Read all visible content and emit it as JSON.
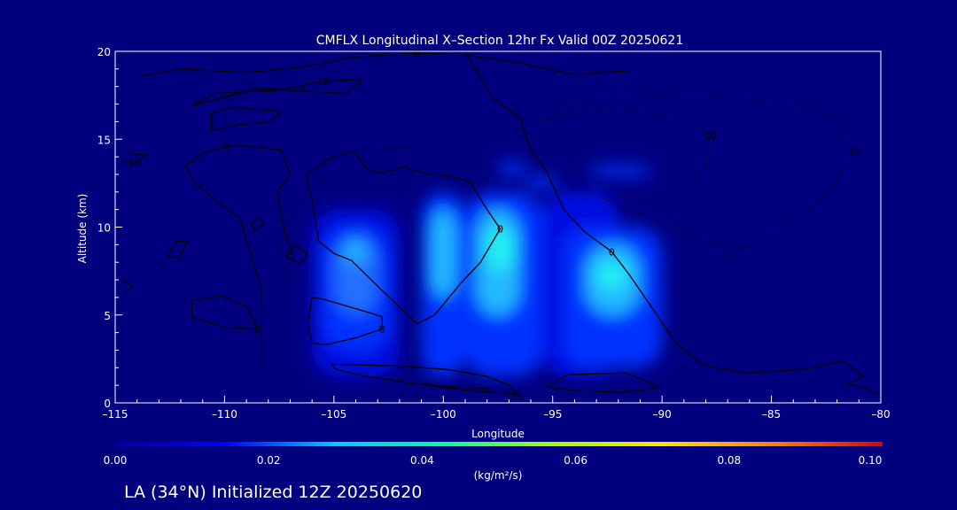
{
  "chart_data": {
    "type": "heatmap",
    "title": "CMFLX Longitudinal X–Section 12hr  Fx Valid 00Z 20250621",
    "xlabel": "Longitude",
    "ylabel": "Altitude (km)",
    "xlim": [
      -115,
      -80
    ],
    "ylim": [
      0,
      20
    ],
    "x_ticks": [
      -115,
      -110,
      -105,
      -100,
      -95,
      -90,
      -85,
      -80
    ],
    "x_tick_labels": [
      "–115",
      "–110",
      "–105",
      "–100",
      "–95",
      "–90",
      "–85",
      "–80"
    ],
    "y_ticks": [
      0,
      5,
      10,
      15,
      20
    ],
    "y_tick_labels": [
      "0",
      "5",
      "10",
      "15",
      "20"
    ],
    "colorbar": {
      "range": [
        0.0,
        0.1
      ],
      "ticks": [
        "0.00",
        "0.02",
        "0.04",
        "0.06",
        "0.08",
        "0.10"
      ],
      "units": "(kg/m²/s)",
      "colors": [
        "#0000a0",
        "#0000ff",
        "#00c8ff",
        "#00ffa0",
        "#a0ff00",
        "#ffe000",
        "#ff8000",
        "#e00000"
      ]
    },
    "fill_color_bands": [
      "#0000c4",
      "#0010e0",
      "#0030ff",
      "#2070ff",
      "#20b8ff",
      "#20f0f0"
    ],
    "cells": [
      {
        "x": [
          -106,
          -102
        ],
        "y": [
          1.5,
          11
        ],
        "value": 0.012
      },
      {
        "x": [
          -105.5,
          -102.5
        ],
        "y": [
          3,
          10
        ],
        "value": 0.02
      },
      {
        "x": [
          -105,
          -103
        ],
        "y": [
          5,
          9.5
        ],
        "value": 0.028
      },
      {
        "x": [
          -104.5,
          -103.5
        ],
        "y": [
          8,
          9.2
        ],
        "value": 0.036
      },
      {
        "x": [
          -101,
          -99
        ],
        "y": [
          1.5,
          12
        ],
        "value": 0.015
      },
      {
        "x": [
          -100.6,
          -99.4
        ],
        "y": [
          6,
          11
        ],
        "value": 0.03
      },
      {
        "x": [
          -99,
          -95.5
        ],
        "y": [
          1.5,
          12
        ],
        "value": 0.018
      },
      {
        "x": [
          -98.5,
          -96.5
        ],
        "y": [
          5,
          11
        ],
        "value": 0.03
      },
      {
        "x": [
          -98,
          -96.8
        ],
        "y": [
          7.5,
          10
        ],
        "value": 0.042
      },
      {
        "x": [
          -95.5,
          -92
        ],
        "y": [
          1.5,
          12
        ],
        "value": 0.012
      },
      {
        "x": [
          -94.5,
          -90
        ],
        "y": [
          2,
          10
        ],
        "value": 0.02
      },
      {
        "x": [
          -93.5,
          -91
        ],
        "y": [
          5,
          9
        ],
        "value": 0.03
      },
      {
        "x": [
          -93,
          -91.6
        ],
        "y": [
          6.5,
          8
        ],
        "value": 0.038
      },
      {
        "x": [
          -97.5,
          -96.2
        ],
        "y": [
          13,
          13.7
        ],
        "value": 0.02
      },
      {
        "x": [
          -96.2,
          -94.8
        ],
        "y": [
          12.2,
          12.9
        ],
        "value": 0.018
      },
      {
        "x": [
          -93.3,
          -90.5
        ],
        "y": [
          12.9,
          13.5
        ],
        "value": 0.016
      }
    ],
    "contours": [
      {
        "value": 0,
        "style": "solid",
        "label": "0",
        "points": [
          [
            -113.8,
            18.6
          ],
          [
            -112,
            19
          ],
          [
            -109,
            18.8
          ],
          [
            -106.5,
            19.1
          ],
          [
            -104,
            19.7
          ],
          [
            -101.2,
            19.9
          ],
          [
            -99,
            19.8
          ],
          [
            -96.8,
            19.4
          ],
          [
            -94,
            18.7
          ],
          [
            -91.5,
            18.9
          ]
        ]
      },
      {
        "value": 0,
        "style": "solid",
        "label": "0",
        "points": [
          [
            -99,
            20
          ],
          [
            -97.8,
            17.4
          ],
          [
            -96.5,
            16.2
          ],
          [
            -96,
            14.4
          ],
          [
            -95.3,
            13.2
          ],
          [
            -94.9,
            12.1
          ],
          [
            -94.5,
            11
          ],
          [
            -93.5,
            9.7
          ],
          [
            -92.3,
            8.6
          ],
          [
            -91.5,
            7.3
          ],
          [
            -90.4,
            5.3
          ],
          [
            -89.3,
            3.3
          ],
          [
            -88,
            2.1
          ],
          [
            -86,
            1.7
          ],
          [
            -83.5,
            1.9
          ],
          [
            -81.7,
            2.4
          ],
          [
            -80.8,
            1.5
          ]
        ]
      },
      {
        "value": 0,
        "style": "solid",
        "label": "",
        "points": [
          [
            -80.8,
            1.5
          ],
          [
            -81.5,
            1.1
          ],
          [
            -80.6,
            0.8
          ],
          [
            -80.2,
            0.5
          ]
        ]
      },
      {
        "value": 0,
        "style": "solid",
        "label": "0",
        "points": [
          [
            -108.3,
            2.1
          ],
          [
            -108.3,
            6.4
          ],
          [
            -109.3,
            10.5
          ],
          [
            -110.4,
            11.5
          ],
          [
            -111.4,
            12.6
          ],
          [
            -111.8,
            13.5
          ],
          [
            -111,
            14.2
          ],
          [
            -109.9,
            14.6
          ],
          [
            -108.8,
            14.6
          ],
          [
            -107.4,
            14.4
          ],
          [
            -107,
            13
          ],
          [
            -107.6,
            12
          ],
          [
            -107.3,
            10
          ],
          [
            -106.8,
            8
          ]
        ]
      },
      {
        "value": 0,
        "style": "solid",
        "label": "0",
        "points": [
          [
            -106.3,
            13
          ],
          [
            -105.1,
            14
          ],
          [
            -104.1,
            14.3
          ],
          [
            -103.4,
            13.2
          ],
          [
            -102.8,
            13.1
          ],
          [
            -101.8,
            13.4
          ],
          [
            -100.6,
            13
          ],
          [
            -99.7,
            12.9
          ],
          [
            -98.8,
            12.6
          ],
          [
            -98,
            11
          ],
          [
            -97.4,
            9.9
          ],
          [
            -98.3,
            8
          ],
          [
            -99.2,
            6.8
          ],
          [
            -100.4,
            5
          ],
          [
            -101.2,
            4.5
          ],
          [
            -102.8,
            6.4
          ],
          [
            -104.2,
            8.1
          ],
          [
            -105,
            8.5
          ],
          [
            -105.7,
            9.2
          ],
          [
            -106,
            11.5
          ],
          [
            -106.3,
            13
          ]
        ]
      },
      {
        "value": 0,
        "style": "solid",
        "label": "0",
        "points": [
          [
            -106,
            6
          ],
          [
            -105.5,
            5.9
          ],
          [
            -104.4,
            5.5
          ],
          [
            -103.3,
            5.1
          ],
          [
            -102.8,
            4.9
          ],
          [
            -102.8,
            4.2
          ],
          [
            -104,
            3.7
          ],
          [
            -105.4,
            3.3
          ],
          [
            -106,
            3.4
          ],
          [
            -106.2,
            4.5
          ],
          [
            -106,
            6
          ]
        ]
      },
      {
        "value": 0,
        "style": "solid",
        "label": "",
        "points": [
          [
            -110.6,
            15.5
          ],
          [
            -110.6,
            16.5
          ],
          [
            -109.6,
            16.8
          ],
          [
            -107.4,
            16.6
          ],
          [
            -107.9,
            16
          ],
          [
            -109.5,
            15.8
          ],
          [
            -110.6,
            15.5
          ]
        ]
      },
      {
        "value": 0,
        "style": "solid",
        "label": "",
        "points": [
          [
            -108.5,
            10.5
          ],
          [
            -108.2,
            10.2
          ],
          [
            -108.6,
            9.8
          ],
          [
            -108.8,
            10.1
          ],
          [
            -108.5,
            10.5
          ]
        ]
      },
      {
        "value": 0,
        "style": "solid",
        "label": "",
        "points": [
          [
            -112.2,
            9.2
          ],
          [
            -111.7,
            9.2
          ],
          [
            -112.1,
            8.2
          ],
          [
            -112.6,
            8.4
          ],
          [
            -112.2,
            9.2
          ]
        ]
      },
      {
        "value": 0,
        "style": "solid",
        "label": "",
        "points": [
          [
            -106.8,
            9
          ],
          [
            -106.2,
            8.5
          ],
          [
            -106.5,
            7.9
          ],
          [
            -107.2,
            8.3
          ],
          [
            -106.8,
            9
          ]
        ]
      },
      {
        "value": 0,
        "style": "solid",
        "label": "0",
        "points": [
          [
            -111.5,
            5.8
          ],
          [
            -110.2,
            6.1
          ],
          [
            -109,
            5.5
          ],
          [
            -108.5,
            4.2
          ],
          [
            -110,
            4.3
          ],
          [
            -111.5,
            4.9
          ],
          [
            -111.5,
            5.8
          ]
        ]
      },
      {
        "value": 0,
        "style": "solid",
        "label": "",
        "points": [
          [
            -114.6,
            7
          ],
          [
            -114.2,
            6.6
          ],
          [
            -114.6,
            6.2
          ]
        ]
      },
      {
        "value": 10,
        "style": "solid",
        "label": "10",
        "points": [
          [
            -111.5,
            16.9
          ],
          [
            -108.5,
            17.9
          ],
          [
            -104.4,
            17.6
          ],
          [
            -103.7,
            18.4
          ],
          [
            -105.5,
            18.3
          ],
          [
            -107.5,
            17.8
          ],
          [
            -110.5,
            17.6
          ],
          [
            -111.5,
            16.9
          ]
        ]
      },
      {
        "value": 10,
        "style": "solid",
        "label": "10",
        "points": [
          [
            -114.5,
            14.2
          ],
          [
            -113.5,
            14.1
          ],
          [
            -114.1,
            13.7
          ],
          [
            -114.8,
            13.8
          ]
        ]
      },
      {
        "value": 10,
        "style": "solid",
        "label": "10",
        "points": [
          [
            -105.1,
            2.2
          ],
          [
            -102.1,
            2.1
          ],
          [
            -99.8,
            1.9
          ],
          [
            -98,
            1.5
          ],
          [
            -97,
            1
          ],
          [
            -96.6,
            0.5
          ],
          [
            -98.8,
            0.7
          ],
          [
            -101.3,
            1.1
          ],
          [
            -103.5,
            1.5
          ],
          [
            -104.9,
            1.9
          ],
          [
            -105.1,
            2.2
          ]
        ]
      },
      {
        "value": 10,
        "style": "solid",
        "label": "",
        "points": [
          [
            -94.3,
            1.6
          ],
          [
            -91.6,
            1.7
          ],
          [
            -90.1,
            0.9
          ],
          [
            -91.8,
            0.6
          ],
          [
            -94,
            0.7
          ],
          [
            -95.3,
            0.9
          ],
          [
            -94.3,
            1.6
          ]
        ]
      },
      {
        "value": 10,
        "style": "solid",
        "label": "",
        "points": [
          [
            -101.3,
            1.1
          ],
          [
            -99.5,
            0.9
          ],
          [
            -97.8,
            0.8
          ]
        ]
      },
      {
        "value": -10,
        "style": "dotted",
        "label": "10",
        "points": [
          [
            -95,
            17
          ],
          [
            -92,
            17.6
          ],
          [
            -88,
            17.5
          ],
          [
            -84,
            17.1
          ],
          [
            -82,
            16.2
          ],
          [
            -81.2,
            14.3
          ],
          [
            -82.5,
            11.8
          ],
          [
            -84.5,
            10.1
          ],
          [
            -86.5,
            8.6
          ],
          [
            -88,
            7.6
          ]
        ]
      },
      {
        "value": -10,
        "style": "dotted",
        "label": "10",
        "points": [
          [
            -95.8,
            16.1
          ],
          [
            -93.2,
            16.7
          ],
          [
            -89.5,
            16.4
          ],
          [
            -87.8,
            15.2
          ],
          [
            -88,
            13.4
          ],
          [
            -89.5,
            12
          ]
        ]
      },
      {
        "value": -10,
        "style": "dotted",
        "label": "",
        "points": [
          [
            -92.8,
            11.7
          ],
          [
            -90.8,
            10.6
          ],
          [
            -88.2,
            9.3
          ],
          [
            -86.5,
            8.9
          ]
        ]
      },
      {
        "value": -10,
        "style": "dotted",
        "label": "",
        "points": [
          [
            -103,
            14.6
          ],
          [
            -101.3,
            14.5
          ]
        ]
      },
      {
        "value": -10,
        "style": "dotted",
        "label": "",
        "points": [
          [
            -106,
            6.3
          ],
          [
            -107.5,
            8.2
          ],
          [
            -107,
            11
          ]
        ]
      }
    ]
  },
  "footer": {
    "caption": "LA (34°N) Initialized 12Z 20250620"
  }
}
